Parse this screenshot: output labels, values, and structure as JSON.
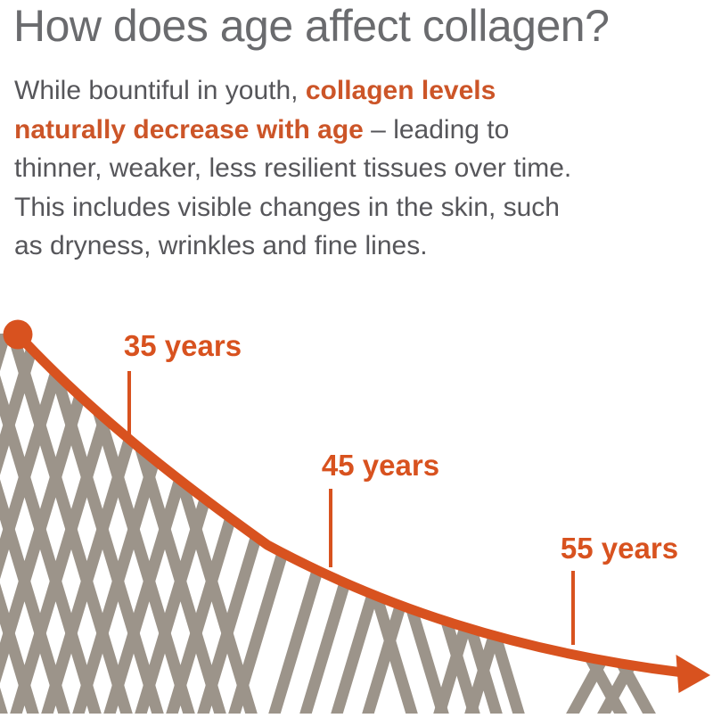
{
  "page": {
    "background": "#FFFFFF"
  },
  "header": {
    "title": "How does age affect collagen?"
  },
  "intro": {
    "lines": [
      [
        {
          "text": "While bountiful in youth, ",
          "style": "normal"
        },
        {
          "text": "collagen levels",
          "style": "accent"
        }
      ],
      [
        {
          "text": "naturally decrease with age",
          "style": "accent"
        },
        {
          "text": " – leading to",
          "style": "normal"
        }
      ],
      [
        {
          "text": "thinner, weaker, less resilient tissues over time.",
          "style": "normal"
        }
      ],
      [
        {
          "text": "This includes visible changes in the skin, such",
          "style": "normal"
        }
      ],
      [
        {
          "text": "as dryness, wrinkles and fine lines.",
          "style": "normal"
        }
      ]
    ]
  },
  "chart_data": {
    "type": "line",
    "title": "Collagen decline with age",
    "trend": "decreasing",
    "x_markers": [
      "35 years",
      "45 years",
      "55 years"
    ],
    "series": [
      {
        "name": "collagen level",
        "qualitative": [
          "abundant in youth (start of curve)",
          "declining by 35 years",
          "lower by 45 years",
          "lowest at 55 years, still falling (arrow)"
        ]
      }
    ],
    "legend": "none",
    "grid": false,
    "axes": "hidden",
    "annotations": "gray fiber mesh below curve thins out with age"
  },
  "figure": {
    "markers": [
      {
        "label": "35 years"
      },
      {
        "label": "45 years"
      },
      {
        "label": "55 years"
      }
    ]
  },
  "colors": {
    "accent_orange": "#D8521F",
    "accent_text_orange": "#CC5528",
    "title_gray": "#6A6B6E",
    "body_gray": "#56565A",
    "fiber_gray": "#9C948A",
    "background": "#FFFFFF"
  }
}
